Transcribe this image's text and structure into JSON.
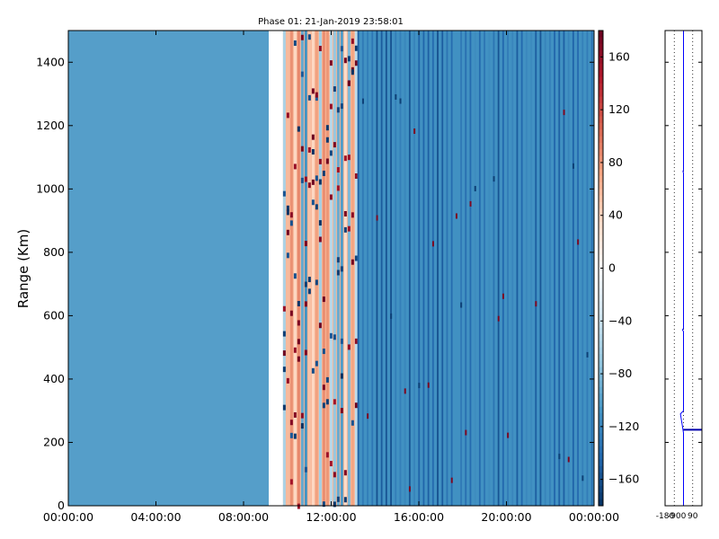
{
  "chart_data": [
    {
      "type": "heatmap",
      "title": "Phase 01: 21-Jan-2019 23:58:01",
      "xlabel": "",
      "ylabel": "Range (Km)",
      "x_ticks": [
        "00:00:00",
        "04:00:00",
        "08:00:00",
        "12:00:00",
        "16:00:00",
        "20:00:00",
        "00:00:00"
      ],
      "x_tick_hours": [
        0,
        4,
        8,
        12,
        16,
        20,
        24
      ],
      "xlim_hours": [
        0,
        24
      ],
      "ylim": [
        0,
        1500
      ],
      "y_ticks": [
        0,
        200,
        400,
        600,
        800,
        1000,
        1200,
        1400
      ],
      "colormap": "RdBu_r",
      "color_range": [
        -180,
        180
      ],
      "colorbar_ticks": [
        160,
        120,
        80,
        40,
        0,
        -40,
        -80,
        -120,
        -160
      ],
      "regions": [
        {
          "from_hour": 0.0,
          "to_hour": 9.15,
          "description": "uniform",
          "value": -100
        },
        {
          "from_hour": 9.15,
          "to_hour": 9.8,
          "description": "no data",
          "value": null
        },
        {
          "from_hour": 9.8,
          "to_hour": 13.2,
          "description": "mixed red/blue phase",
          "value": 60
        },
        {
          "from_hour": 13.2,
          "to_hour": 24.0,
          "description": "banded blue phase",
          "value": -110
        }
      ],
      "grid": false
    },
    {
      "type": "line",
      "xlabel": "",
      "ylabel": "",
      "x_ticks": [
        "-180",
        "-90",
        "0",
        "90"
      ],
      "x_tick_values": [
        -180,
        -90,
        0,
        90
      ],
      "xlim": [
        -180,
        180
      ],
      "ylim": [
        0,
        1500
      ],
      "series": [
        {
          "color": "#0000ff",
          "x": [
            0,
            0,
            -30,
            0,
            0,
            -10,
            0,
            0,
            -5,
            0,
            0,
            0,
            0,
            0
          ],
          "y": [
            0,
            230,
            290,
            300,
            550,
            555,
            560,
            1050,
            1055,
            1060,
            1200,
            1400,
            1440,
            1500
          ]
        }
      ],
      "markers": [
        {
          "x": 0,
          "y": 240,
          "note": "horizontal segment"
        }
      ],
      "grid": "vertical dotted"
    }
  ]
}
